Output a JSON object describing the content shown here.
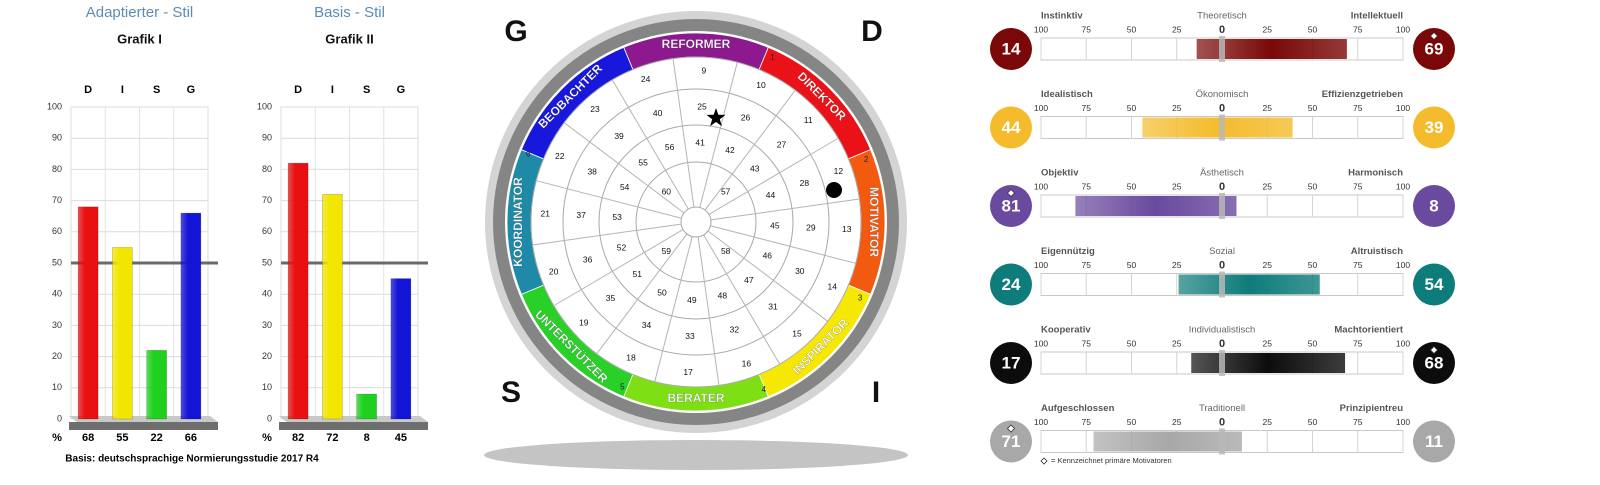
{
  "chart_data": [
    {
      "type": "bar",
      "title": "Adaptierter - Stil",
      "subtitle": "Grafik I",
      "categories": [
        "D",
        "I",
        "S",
        "G"
      ],
      "values": [
        68,
        55,
        22,
        66
      ],
      "colors": [
        "#e81010",
        "#f2e600",
        "#1fd01f",
        "#1414d6"
      ],
      "ylim": [
        0,
        100
      ],
      "yticks": [
        0,
        10,
        20,
        30,
        40,
        50,
        60,
        70,
        80,
        90,
        100
      ],
      "grid": true,
      "reference_line": 50,
      "value_row_label": "%"
    },
    {
      "type": "bar",
      "title": "Basis - Stil",
      "subtitle": "Grafik II",
      "categories": [
        "D",
        "I",
        "S",
        "G"
      ],
      "values": [
        82,
        72,
        8,
        45
      ],
      "colors": [
        "#e81010",
        "#f2e600",
        "#1fd01f",
        "#1414d6"
      ],
      "ylim": [
        0,
        100
      ],
      "yticks": [
        0,
        10,
        20,
        30,
        40,
        50,
        60,
        70,
        80,
        90,
        100
      ],
      "grid": true,
      "reference_line": 50,
      "value_row_label": "%"
    }
  ],
  "footnote": "Basis: deutschsprachige Normierungsstudie 2017 R4",
  "wheel": {
    "corner_letters": [
      "G",
      "D",
      "S",
      "I"
    ],
    "segments": [
      {
        "label": "REFORMER",
        "color": "#8c1a8e"
      },
      {
        "label": "DIREKTOR",
        "color": "#ea1218"
      },
      {
        "label": "MOTIVATOR",
        "color": "#f25a10"
      },
      {
        "label": "INSPIRATOR",
        "color": "#f6e800"
      },
      {
        "label": "BERATER",
        "color": "#7ee014"
      },
      {
        "label": "UNTERSTÜTZER",
        "color": "#28d028"
      },
      {
        "label": "KOORDINATOR",
        "color": "#1e8aa8"
      },
      {
        "label": "BEOBACHTER",
        "color": "#1818dc"
      }
    ],
    "segment_numbers": [
      1,
      2,
      3,
      4,
      5,
      6
    ],
    "rings": [
      [
        9,
        10,
        11,
        12,
        13,
        14,
        15,
        16,
        17,
        18,
        19,
        20,
        21,
        22,
        23,
        24
      ],
      [
        25,
        26,
        27,
        28,
        29,
        30,
        31,
        32,
        33,
        34,
        35,
        36,
        37,
        38,
        39,
        40
      ],
      [
        41,
        42,
        43,
        44,
        45,
        46,
        47,
        48,
        49,
        50,
        51,
        52,
        53,
        54,
        55,
        56
      ],
      [
        57,
        58,
        59,
        60
      ]
    ]
  },
  "motivators": {
    "xlim": [
      -100,
      100
    ],
    "scale_ticks": [
      {
        "value": -100,
        "label": "100"
      },
      {
        "value": -75,
        "label": "75"
      },
      {
        "value": -50,
        "label": "50"
      },
      {
        "value": -25,
        "label": "25"
      },
      0,
      25,
      50,
      75,
      100
    ],
    "rows": [
      {
        "left_label": "Instinktiv",
        "center_label": "Theoretisch",
        "right_label": "Intellektuell",
        "left_value": 14,
        "right_value": 69,
        "primary": "right",
        "color": "#7a0808"
      },
      {
        "left_label": "Idealistisch",
        "center_label": "Ökonomisch",
        "right_label": "Effizienzgetrieben",
        "left_value": 44,
        "right_value": 39,
        "primary": "none",
        "color": "#f4bc2c"
      },
      {
        "left_label": "Objektiv",
        "center_label": "Ästhetisch",
        "right_label": "Harmonisch",
        "left_value": 81,
        "right_value": 8,
        "primary": "left",
        "color": "#6a4a9e"
      },
      {
        "left_label": "Eigennützig",
        "center_label": "Sozial",
        "right_label": "Altruistisch",
        "left_value": 24,
        "right_value": 54,
        "primary": "none",
        "color": "#0e7c7a"
      },
      {
        "left_label": "Kooperativ",
        "center_label": "Individualistisch",
        "right_label": "Machtorientiert",
        "left_value": 17,
        "right_value": 68,
        "primary": "right",
        "color": "#0c0c0c"
      },
      {
        "left_label": "Aufgeschlossen",
        "center_label": "Traditionell",
        "right_label": "Prinzipientreu",
        "left_value": 71,
        "right_value": 11,
        "primary": "left",
        "color": "#a8a8a8"
      }
    ],
    "legend": "= Kennzeichnet primäre Motivatoren"
  }
}
